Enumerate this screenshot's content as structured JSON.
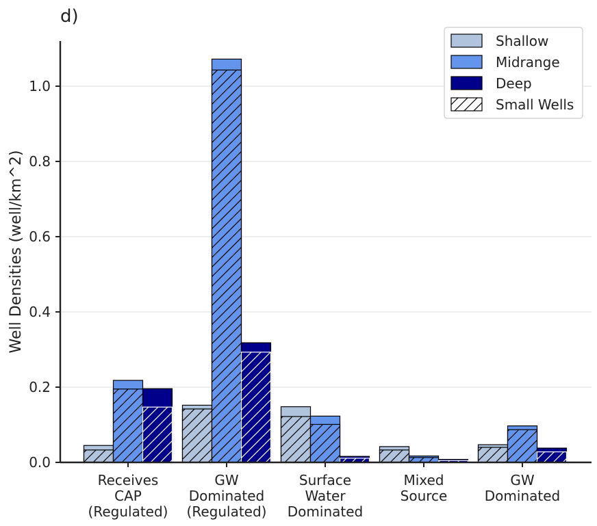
{
  "chart_data": {
    "type": "bar",
    "panel_label": "d)",
    "xlabel": "",
    "ylabel": "Well Densities (well/km^2)",
    "ylim": [
      0,
      1.12
    ],
    "yticks": [
      0.0,
      0.2,
      0.4,
      0.6,
      0.8,
      1.0
    ],
    "ytick_labels": [
      "0.0",
      "0.2",
      "0.4",
      "0.6",
      "0.8",
      "1.0"
    ],
    "grid": "horizontal",
    "legend_position": "top-right",
    "categories": [
      [
        "Receives",
        "CAP",
        "(Regulated)"
      ],
      [
        "GW",
        "Dominated",
        "(Regulated)"
      ],
      [
        "Surface",
        "Water",
        "Dominated"
      ],
      [
        "Mixed",
        "Source"
      ],
      [
        "GW",
        "Dominated"
      ]
    ],
    "series": [
      {
        "name": "Shallow",
        "color": "#b0c4de",
        "total": [
          0.045,
          0.152,
          0.148,
          0.042,
          0.047
        ],
        "small_wells": [
          0.033,
          0.142,
          0.122,
          0.033,
          0.04
        ]
      },
      {
        "name": "Midrange",
        "color": "#6495ed",
        "total": [
          0.218,
          1.072,
          0.123,
          0.017,
          0.097
        ],
        "small_wells": [
          0.195,
          1.043,
          0.101,
          0.013,
          0.087
        ]
      },
      {
        "name": "Deep",
        "color": "#00008b",
        "total": [
          0.196,
          0.318,
          0.016,
          0.008,
          0.038
        ],
        "small_wells": [
          0.147,
          0.293,
          0.011,
          0.005,
          0.028
        ]
      }
    ],
    "legend": [
      "Shallow",
      "Midrange",
      "Deep",
      "Small Wells"
    ]
  }
}
